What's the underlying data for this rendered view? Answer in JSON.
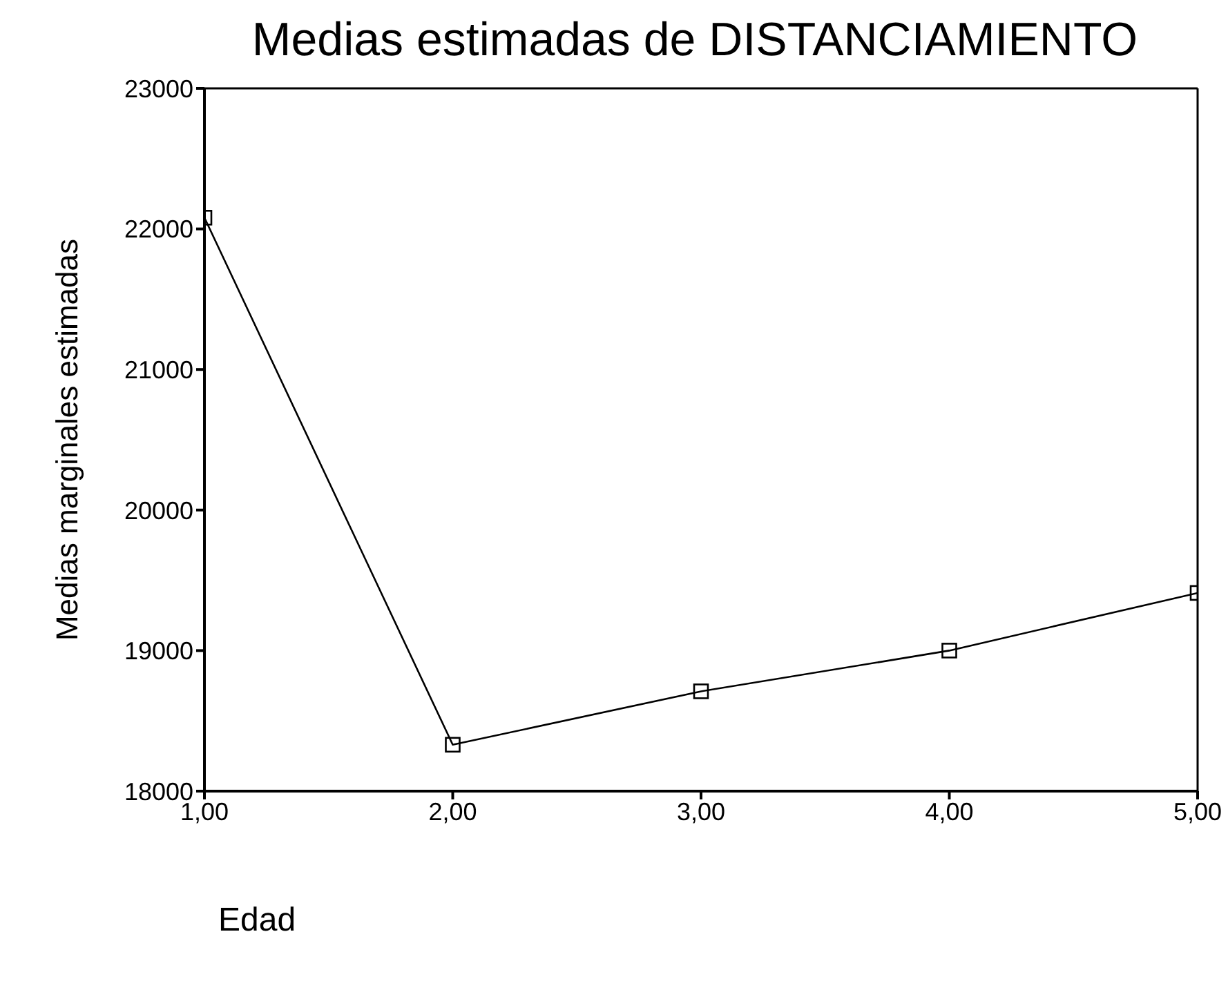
{
  "chart_data": {
    "type": "line",
    "title": "Medias estimadas de DISTANCIAMIENTO",
    "xlabel": "Edad",
    "ylabel": "Medias marginales estimadas",
    "categories": [
      "1,00",
      "2,00",
      "3,00",
      "4,00",
      "5,00"
    ],
    "series": [
      {
        "color": "#000000",
        "values": [
          22080,
          18330,
          18710,
          19000,
          19410
        ]
      }
    ],
    "ylim": [
      18000,
      23000
    ],
    "yticks": [
      18000,
      19000,
      20000,
      21000,
      22000,
      23000
    ],
    "grid": false,
    "legend": false,
    "marker": "square",
    "line_style": "solid"
  }
}
